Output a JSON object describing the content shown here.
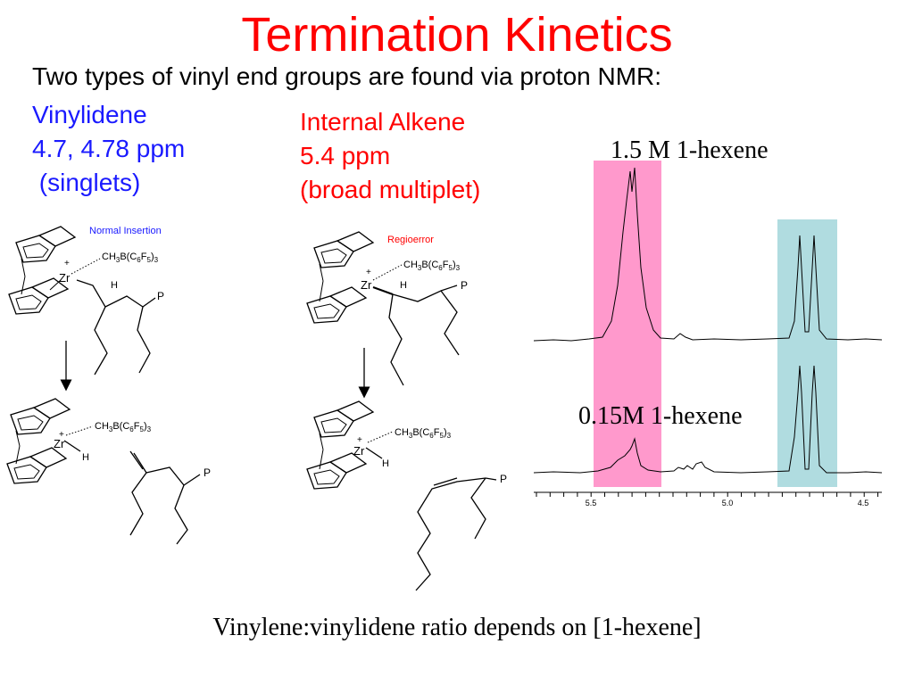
{
  "slide": {
    "title": "Termination Kinetics",
    "subtitle": "Two types of vinyl end groups are found via proton NMR:",
    "vinylidene": {
      "name": "Vinylidene",
      "shift": "4.7, 4.78 ppm",
      "note": " (singlets)"
    },
    "internal": {
      "name": "Internal Alkene",
      "shift": "5.4 ppm",
      "note": "(broad multiplet)"
    },
    "caption": "Vinylene:vinylidene ratio depends on [1-hexene]"
  },
  "scheme": {
    "normal_label": "Normal Insertion",
    "regio_label": "Regioerror",
    "zr": "Zr",
    "plus": "+",
    "h": "H",
    "p": "P",
    "counterion": {
      "prefix": "CH",
      "s1": "3",
      "mid1": "B(C",
      "s2": "6",
      "mid2": "F",
      "s3": "5",
      "mid3": ")",
      "s4": "3"
    }
  },
  "nmr": {
    "high_label": "1.5 M 1-hexene",
    "low_label": "0.15M 1-hexene",
    "ticks": [
      "5.5",
      "5.0",
      "4.5"
    ],
    "colors": {
      "internal_band": "#ff99cc",
      "vinylidene_band": "#b0dce0"
    }
  }
}
